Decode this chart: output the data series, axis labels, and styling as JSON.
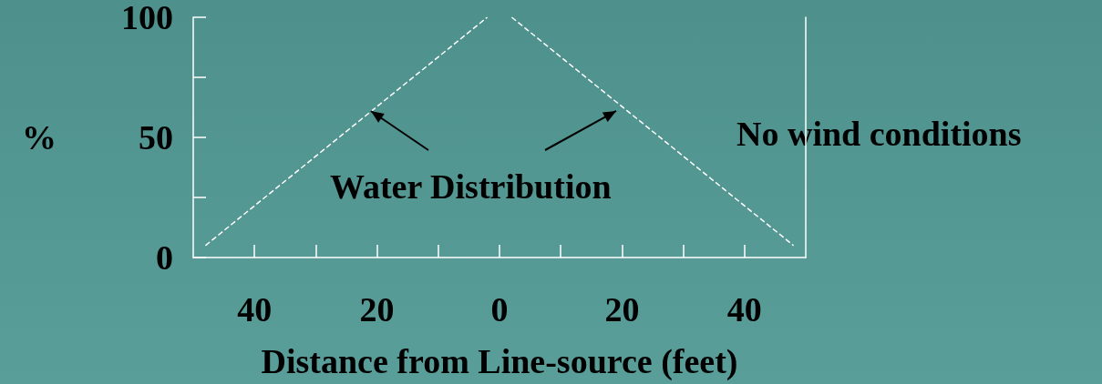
{
  "chart_data": {
    "type": "line",
    "xlabel": "Distance from Line-source (feet)",
    "ylabel": "%",
    "series": [
      {
        "color": "#ffffff",
        "x": [
          -48,
          -2,
          0,
          2,
          48
        ],
        "values": [
          5,
          100,
          null,
          100,
          5
        ]
      }
    ],
    "xlim": [
      -50,
      50
    ],
    "xticks": [
      {
        "value": -40,
        "label": "40"
      },
      {
        "value": -30,
        "label": null
      },
      {
        "value": -20,
        "label": "20"
      },
      {
        "value": -10,
        "label": null
      },
      0,
      {
        "value": 10,
        "label": null
      },
      {
        "value": 20,
        "label": "20"
      },
      {
        "value": 30,
        "label": null
      },
      {
        "value": 40,
        "label": "40"
      }
    ],
    "ylim": [
      0,
      100
    ],
    "yticks": [
      0,
      {
        "value": 25,
        "label": null
      },
      50,
      {
        "value": 75,
        "label": null
      },
      100
    ],
    "line_style": "dashed",
    "marker": "none",
    "grid": false,
    "annotations": [
      {
        "text": "Water Distribution",
        "x": -21,
        "y": 61
      },
      "No wind conditions"
    ]
  }
}
